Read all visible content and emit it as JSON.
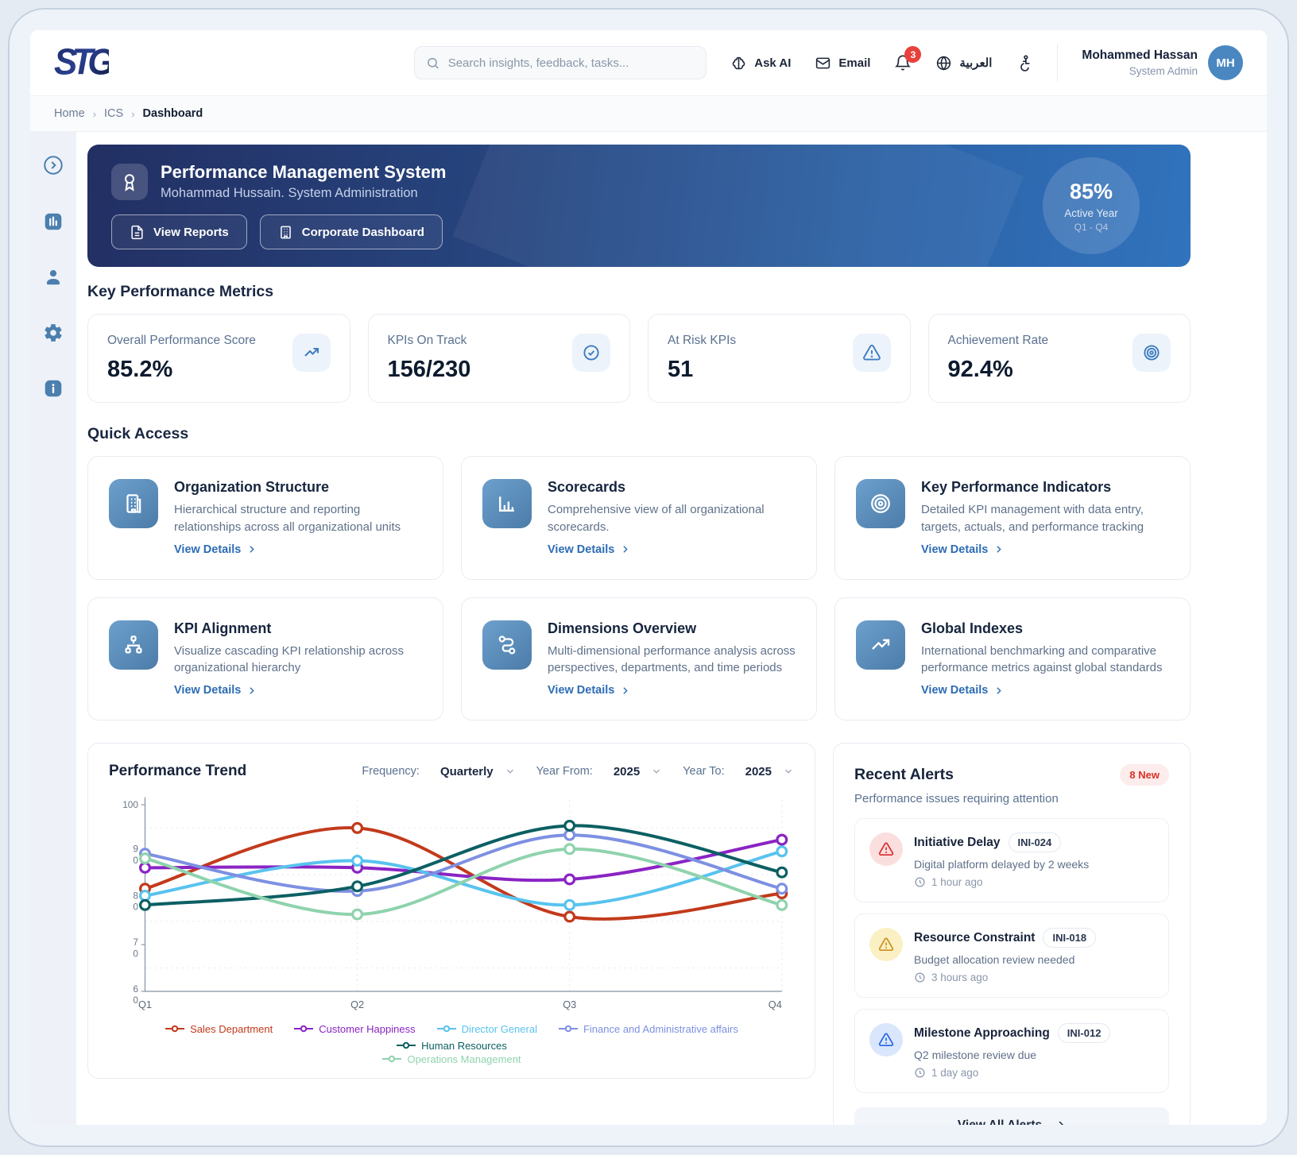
{
  "header": {
    "logo_text": "STG",
    "search_placeholder": "Search insights, feedback, tasks...",
    "ask_ai": "Ask AI",
    "email": "Email",
    "notifications_count": "3",
    "language": "العربية",
    "user": {
      "name": "Mohammed Hassan",
      "role": "System Admin",
      "initials": "MH"
    }
  },
  "breadcrumb": {
    "home": "Home",
    "section": "ICS",
    "current": "Dashboard"
  },
  "banner": {
    "title": "Performance Management System",
    "subtitle": "Mohammad Hussain. System Administration",
    "view_reports": "View Reports",
    "corporate_dashboard": "Corporate Dashboard",
    "gauge": {
      "value": "85%",
      "label": "Active Year",
      "range": "Q1 - Q4"
    }
  },
  "metrics": {
    "heading": "Key Performance Metrics",
    "cards": [
      {
        "label": "Overall Performance Score",
        "value": "85.2%",
        "icon": "trending-up-icon"
      },
      {
        "label": "KPIs On Track",
        "value": "156/230",
        "icon": "check-circle-icon"
      },
      {
        "label": "At Risk KPIs",
        "value": "51",
        "icon": "alert-triangle-icon"
      },
      {
        "label": "Achievement Rate",
        "value": "92.4%",
        "icon": "target-icon"
      }
    ]
  },
  "quick_access": {
    "heading": "Quick Access",
    "view_details": "View Details",
    "cards": [
      {
        "title": "Organization Structure",
        "description": "Hierarchical structure and reporting relationships across all organizational units",
        "icon": "org-structure-icon"
      },
      {
        "title": "Scorecards",
        "description": "Comprehensive view of all organizational scorecards.",
        "icon": "bar-chart-icon"
      },
      {
        "title": "Key Performance Indicators",
        "description": "Detailed KPI management with data entry, targets, actuals, and performance tracking",
        "icon": "target-icon"
      },
      {
        "title": "KPI Alignment",
        "description": "Visualize cascading KPI relationship across organizational hierarchy",
        "icon": "hierarchy-icon"
      },
      {
        "title": "Dimensions Overview",
        "description": "Multi-dimensional performance analysis across perspectives, departments, and time periods",
        "icon": "route-icon"
      },
      {
        "title": "Global Indexes",
        "description": "International benchmarking and comparative performance metrics against global standards",
        "icon": "trending-up-icon"
      }
    ]
  },
  "trend": {
    "title": "Performance Trend",
    "frequency_label": "Frequency:",
    "frequency_value": "Quarterly",
    "year_from_label": "Year From:",
    "year_from_value": "2025",
    "year_to_label": "Year To:",
    "year_to_value": "2025"
  },
  "chart_data": {
    "type": "line",
    "categories": [
      "Q1",
      "Q2",
      "Q3",
      "Q4"
    ],
    "ylim": [
      60,
      100
    ],
    "yticks": [
      100,
      90,
      80,
      70,
      60
    ],
    "grid": true,
    "legend_position": "bottom",
    "series": [
      {
        "name": "Sales Department",
        "color": "#c23a1b",
        "values": [
          82,
          95,
          76,
          81
        ]
      },
      {
        "name": "Customer Happiness",
        "color": "#8a24c4",
        "values": [
          86.5,
          86.5,
          84,
          92.5
        ]
      },
      {
        "name": "Director General",
        "color": "#58c3ee",
        "values": [
          80.5,
          88,
          78.5,
          90
        ]
      },
      {
        "name": "Finance and Administrative affairs",
        "color": "#7d90e2",
        "values": [
          89.5,
          81.5,
          93.5,
          82
        ]
      },
      {
        "name": "Human Resources",
        "color": "#0c5f63",
        "values": [
          78.5,
          82.5,
          95.5,
          85.5
        ]
      },
      {
        "name": "Operations Management",
        "color": "#8fd3ad",
        "values": [
          88.5,
          76.5,
          90.5,
          78.5
        ]
      }
    ]
  },
  "alerts": {
    "title": "Recent Alerts",
    "badge": "8 New",
    "subtitle": "Performance issues requiring attention",
    "view_all": "View All Alerts",
    "items": [
      {
        "title": "Initiative Delay",
        "id": "INI-024",
        "description": "Digital platform delayed by 2 weeks",
        "time": "1 hour ago",
        "severity": "critical"
      },
      {
        "title": "Resource Constraint",
        "id": "INI-018",
        "description": "Budget allocation review needed",
        "time": "3 hours ago",
        "severity": "warning"
      },
      {
        "title": "Milestone Approaching",
        "id": "INI-012",
        "description": "Q2 milestone review due",
        "time": "1 day ago",
        "severity": "info"
      }
    ]
  }
}
